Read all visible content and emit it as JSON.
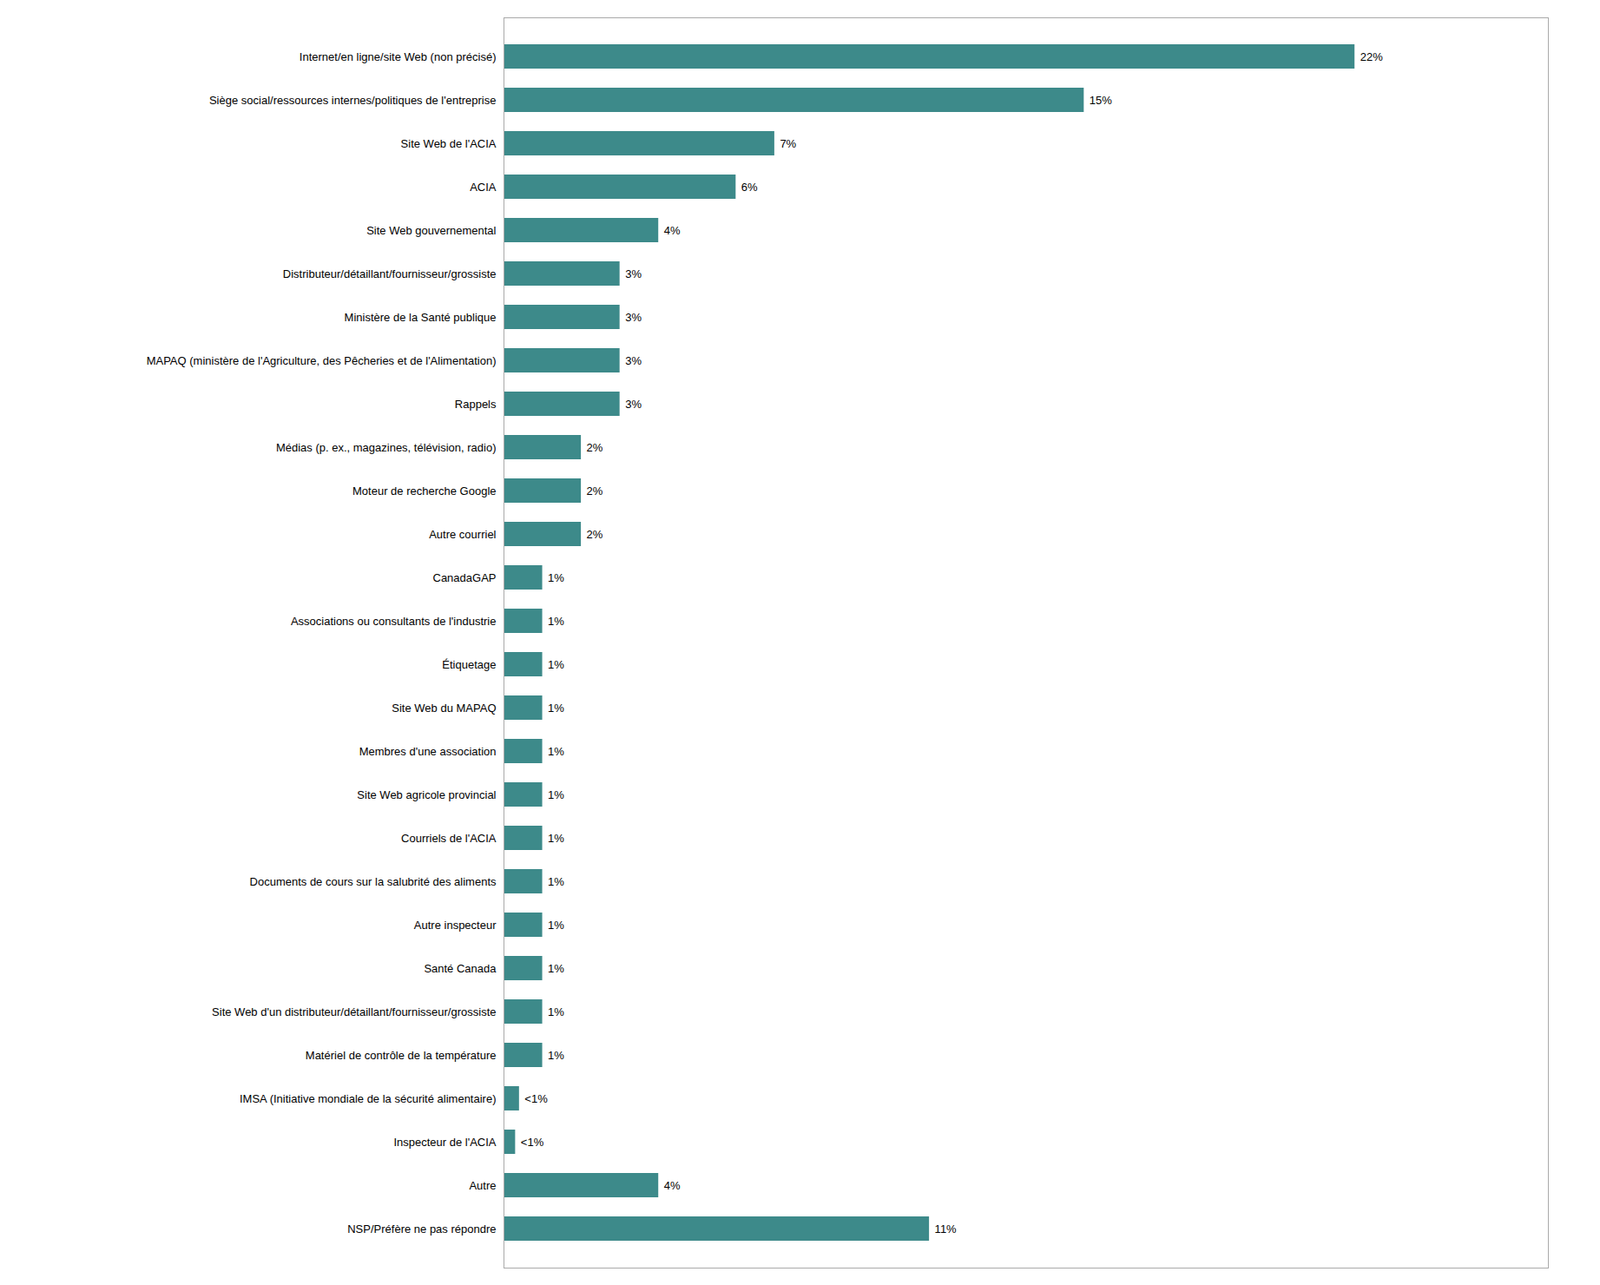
{
  "chart_data": {
    "type": "bar",
    "orientation": "horizontal",
    "categories": [
      "Internet/en ligne/site Web (non précisé)",
      "Siège social/ressources internes/politiques de l'entreprise",
      "Site Web de l'ACIA",
      "ACIA",
      "Site Web gouvernemental",
      "Distributeur/détaillant/fournisseur/grossiste",
      "Ministère de la Santé publique",
      "MAPAQ (ministère de l'Agriculture, des Pêcheries et de l'Alimentation)",
      "Rappels",
      "Médias (p. ex., magazines, télévision, radio)",
      "Moteur de recherche Google",
      "Autre courriel",
      "CanadaGAP",
      "Associations ou consultants de l'industrie",
      "Étiquetage",
      "Site Web du MAPAQ",
      "Membres d'une association",
      "Site Web agricole provincial",
      "Courriels de l'ACIA",
      "Documents de cours sur la salubrité des aliments",
      "Autre inspecteur",
      "Santé Canada",
      "Site Web d'un distributeur/détaillant/fournisseur/grossiste",
      "Matériel de contrôle de la température",
      "IMSA (Initiative mondiale de la sécurité alimentaire)",
      "Inspecteur de l'ACIA",
      "Autre",
      "NSP/Préfère ne pas répondre"
    ],
    "values": [
      22,
      15,
      7,
      6,
      4,
      3,
      3,
      3,
      3,
      2,
      2,
      2,
      1,
      1,
      1,
      1,
      1,
      1,
      1,
      1,
      1,
      1,
      1,
      1,
      0.4,
      0.3,
      4,
      11
    ],
    "value_labels": [
      "22%",
      "15%",
      "7%",
      "6%",
      "4%",
      "3%",
      "3%",
      "3%",
      "3%",
      "2%",
      "2%",
      "2%",
      "1%",
      "1%",
      "1%",
      "1%",
      "1%",
      "1%",
      "1%",
      "1%",
      "1%",
      "1%",
      "1%",
      "1%",
      "<1%",
      "<1%",
      "4%",
      "11%"
    ],
    "color": "#3d8a8a",
    "xlim": [
      0,
      27
    ],
    "tick_labels": "y",
    "data_labels": true
  }
}
